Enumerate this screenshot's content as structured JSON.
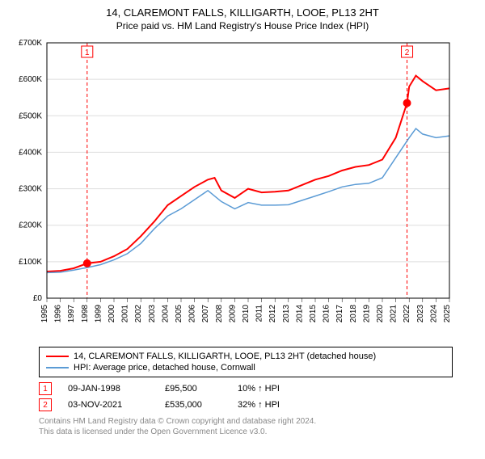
{
  "title": "14, CLAREMONT FALLS, KILLIGARTH, LOOE, PL13 2HT",
  "subtitle": "Price paid vs. HM Land Registry's House Price Index (HPI)",
  "chart": {
    "type": "line",
    "background_color": "#ffffff",
    "plot_border_color": "#000000",
    "grid_color": "#dddddd",
    "ylim": [
      0,
      700000
    ],
    "ytick_step": 100000,
    "ytick_labels": [
      "£0",
      "£100K",
      "£200K",
      "£300K",
      "£400K",
      "£500K",
      "£600K",
      "£700K"
    ],
    "xlim": [
      1995,
      2025
    ],
    "xtick_labels": [
      "1995",
      "1996",
      "1997",
      "1998",
      "1999",
      "2000",
      "2001",
      "2002",
      "2003",
      "2004",
      "2005",
      "2006",
      "2007",
      "2008",
      "2009",
      "2010",
      "2011",
      "2012",
      "2013",
      "2014",
      "2015",
      "2016",
      "2017",
      "2018",
      "2019",
      "2020",
      "2021",
      "2022",
      "2023",
      "2024",
      "2025"
    ],
    "xtick_rotation": 90,
    "axis_fontsize": 10,
    "badge_border_color": "#ff0000",
    "badge_text_color": "#ff0000",
    "guide_line_color": "#ff0000",
    "guide_line_dash": "4,3",
    "series": [
      {
        "name": "price_paid",
        "color": "#ff0000",
        "line_width": 2,
        "label": "14, CLAREMONT FALLS, KILLIGARTH, LOOE, PL13 2HT (detached house)",
        "points": [
          [
            1995,
            73000
          ],
          [
            1996,
            75000
          ],
          [
            1997,
            82000
          ],
          [
            1998,
            95500
          ],
          [
            1999,
            100000
          ],
          [
            2000,
            115000
          ],
          [
            2001,
            135000
          ],
          [
            2002,
            170000
          ],
          [
            2003,
            210000
          ],
          [
            2004,
            255000
          ],
          [
            2005,
            280000
          ],
          [
            2006,
            305000
          ],
          [
            2007,
            325000
          ],
          [
            2007.5,
            330000
          ],
          [
            2008,
            295000
          ],
          [
            2009,
            275000
          ],
          [
            2010,
            300000
          ],
          [
            2011,
            290000
          ],
          [
            2012,
            292000
          ],
          [
            2013,
            295000
          ],
          [
            2014,
            310000
          ],
          [
            2015,
            325000
          ],
          [
            2016,
            335000
          ],
          [
            2017,
            350000
          ],
          [
            2018,
            360000
          ],
          [
            2019,
            365000
          ],
          [
            2020,
            380000
          ],
          [
            2021,
            440000
          ],
          [
            2021.84,
            535000
          ],
          [
            2022,
            580000
          ],
          [
            2022.5,
            610000
          ],
          [
            2023,
            595000
          ],
          [
            2024,
            570000
          ],
          [
            2025,
            575000
          ]
        ]
      },
      {
        "name": "hpi",
        "color": "#5b9bd5",
        "line_width": 1.5,
        "label": "HPI: Average price, detached house, Cornwall",
        "points": [
          [
            1995,
            70000
          ],
          [
            1996,
            71000
          ],
          [
            1997,
            77000
          ],
          [
            1998,
            84000
          ],
          [
            1999,
            92000
          ],
          [
            2000,
            105000
          ],
          [
            2001,
            122000
          ],
          [
            2002,
            150000
          ],
          [
            2003,
            190000
          ],
          [
            2004,
            225000
          ],
          [
            2005,
            245000
          ],
          [
            2006,
            270000
          ],
          [
            2007,
            295000
          ],
          [
            2008,
            265000
          ],
          [
            2009,
            245000
          ],
          [
            2010,
            262000
          ],
          [
            2011,
            255000
          ],
          [
            2012,
            255000
          ],
          [
            2013,
            256000
          ],
          [
            2014,
            268000
          ],
          [
            2015,
            280000
          ],
          [
            2016,
            292000
          ],
          [
            2017,
            305000
          ],
          [
            2018,
            312000
          ],
          [
            2019,
            315000
          ],
          [
            2020,
            330000
          ],
          [
            2021,
            385000
          ],
          [
            2022,
            440000
          ],
          [
            2022.5,
            465000
          ],
          [
            2023,
            450000
          ],
          [
            2024,
            440000
          ],
          [
            2025,
            445000
          ]
        ]
      }
    ],
    "markers": [
      {
        "id": 1,
        "x": 1998,
        "y": 95500,
        "label_y_top": true
      },
      {
        "id": 2,
        "x": 2021.84,
        "y": 535000,
        "label_y_top": true
      }
    ],
    "marker_color": "#ff0000",
    "marker_radius": 5
  },
  "legend": {
    "border_color": "#000000",
    "series1_label": "14, CLAREMONT FALLS, KILLIGARTH, LOOE, PL13 2HT (detached house)",
    "series2_label": "HPI: Average price, detached house, Cornwall"
  },
  "sales": [
    {
      "id": "1",
      "date": "09-JAN-1998",
      "price": "£95,500",
      "hpi": "10% ↑ HPI"
    },
    {
      "id": "2",
      "date": "03-NOV-2021",
      "price": "£535,000",
      "hpi": "32% ↑ HPI"
    }
  ],
  "footer_line1": "Contains HM Land Registry data © Crown copyright and database right 2024.",
  "footer_line2": "This data is licensed under the Open Government Licence v3.0."
}
